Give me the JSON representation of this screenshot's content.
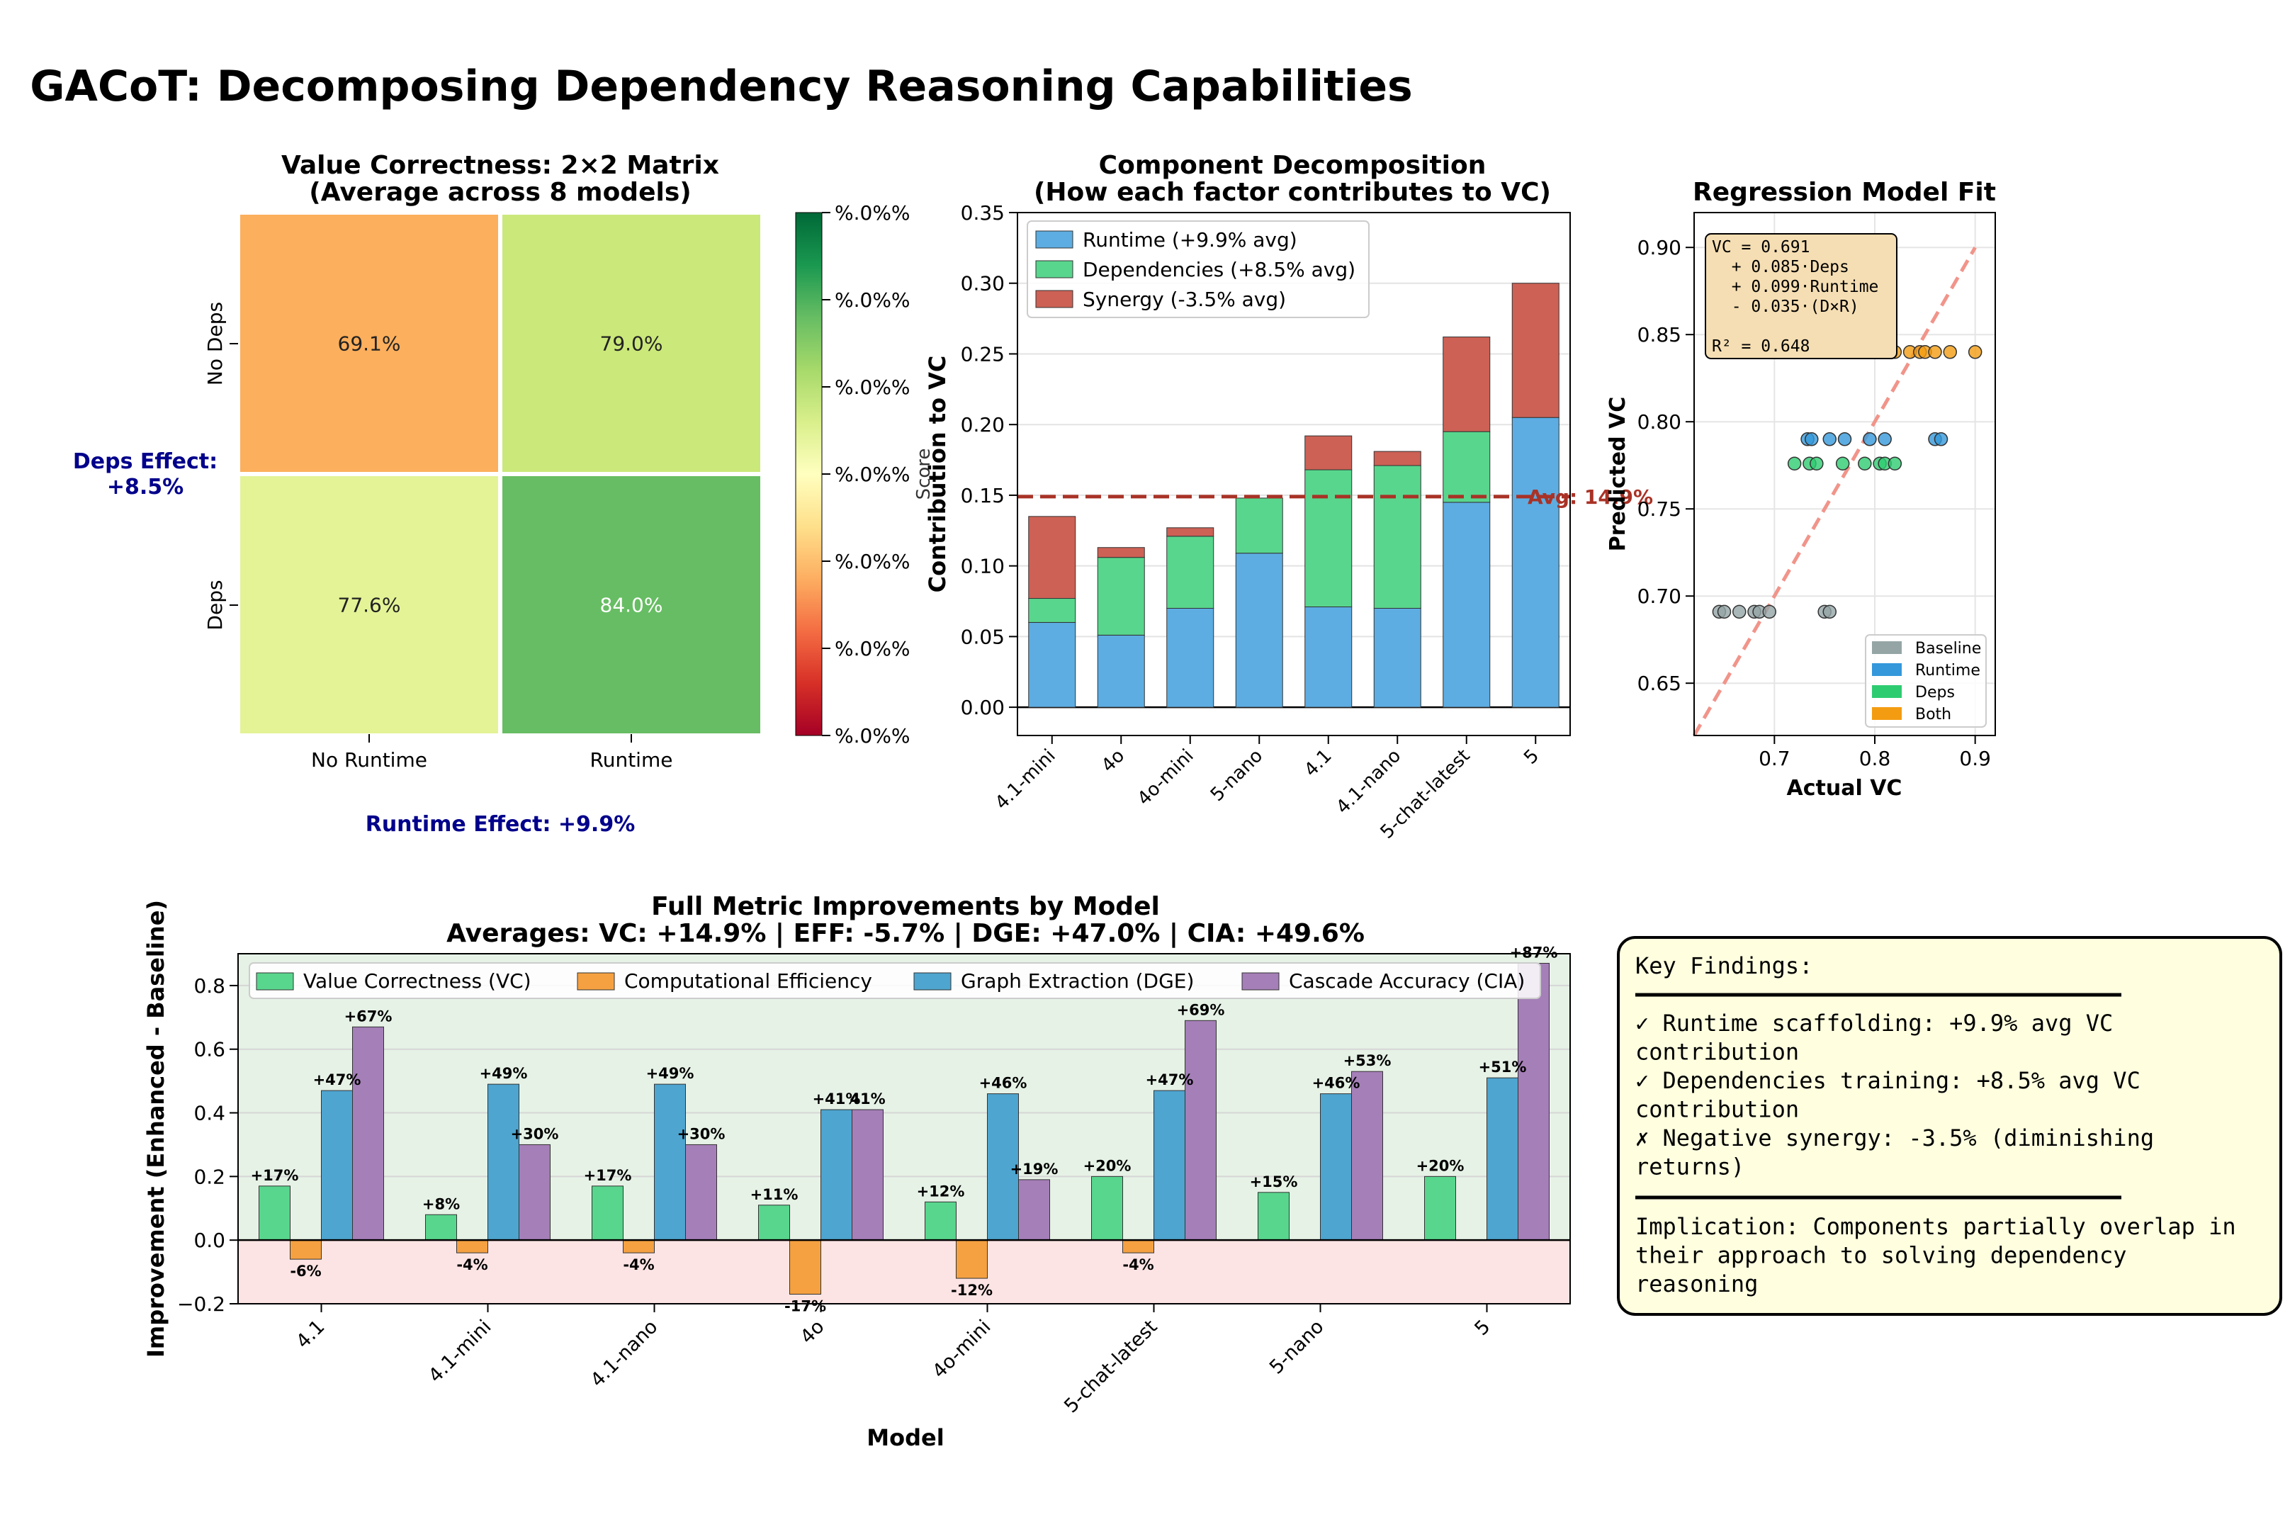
{
  "figure_title": "GACoT: Decomposing Dependency Reasoning Capabilities",
  "chart_data": [
    {
      "id": "heatmap",
      "type": "heatmap",
      "title": "Value Correctness: 2×2 Matrix",
      "subtitle": "(Average across 8 models)",
      "x_categories": [
        "No Runtime",
        "Runtime"
      ],
      "y_categories": [
        "No Deps",
        "Deps"
      ],
      "values": [
        [
          69.1,
          79.0
        ],
        [
          77.6,
          84.0
        ]
      ],
      "value_labels": [
        [
          "69.1%",
          "79.0%"
        ],
        [
          "77.6%",
          "84.0%"
        ]
      ],
      "cell_colors": [
        [
          "#fcaf5c",
          "#cbe87a"
        ],
        [
          "#e3f396",
          "#67bd63"
        ]
      ],
      "cell_text_colors": [
        [
          "#222222",
          "#222222"
        ],
        [
          "#222222",
          "#ffffff"
        ]
      ],
      "colorbar_tick_labels": [
        "%.0%%",
        "%.0%%",
        "%.0%%",
        "%.0%%",
        "%.0%%",
        "%.0%%",
        "%.0%%"
      ],
      "colorscale": "RdYlGn",
      "deps_effect_label": "Deps Effect:",
      "deps_effect_value": "+8.5%",
      "runtime_effect_label": "Runtime Effect: +9.9%"
    },
    {
      "id": "decomposition",
      "type": "bar",
      "stacked": true,
      "title": "Component Decomposition",
      "subtitle": "(How each factor contributes to VC)",
      "ylabel": "Contribution to VC",
      "ylabel_overlap": "Score",
      "categories": [
        "4.1-mini",
        "4o",
        "4o-mini",
        "5-nano",
        "4.1",
        "4.1-nano",
        "5-chat-latest",
        "5"
      ],
      "series": [
        {
          "name": "Runtime (+9.9% avg)",
          "color": "#5dade2",
          "values": [
            0.06,
            0.051,
            0.07,
            0.109,
            0.071,
            0.07,
            0.145,
            0.205
          ]
        },
        {
          "name": "Dependencies (+8.5% avg)",
          "color": "#58d68d",
          "values": [
            0.017,
            0.055,
            0.051,
            0.039,
            0.097,
            0.101,
            0.05,
            0.0
          ]
        },
        {
          "name": "Synergy (-3.5% avg)",
          "color": "#cd6155",
          "values": [
            0.058,
            0.007,
            0.006,
            0.0,
            0.024,
            0.01,
            0.067,
            0.095
          ]
        }
      ],
      "average_line": {
        "value": 0.149,
        "label": "Avg: 14.9%",
        "color": "#a93226"
      },
      "ylim": [
        -0.02,
        0.35
      ],
      "yticks": [
        "0.00",
        "0.05",
        "0.10",
        "0.15",
        "0.20",
        "0.25",
        "0.30",
        "0.35"
      ],
      "legend_position": "upper-left"
    },
    {
      "id": "regression",
      "type": "scatter",
      "title": "Regression Model Fit",
      "xlabel": "Actual VC",
      "ylabel": "Predicted VC",
      "xlim": [
        0.62,
        0.92
      ],
      "ylim": [
        0.62,
        0.92
      ],
      "xticks": [
        "0.7",
        "0.8",
        "0.9"
      ],
      "yticks": [
        "0.65",
        "0.70",
        "0.75",
        "0.80",
        "0.85",
        "0.90"
      ],
      "equation_lines": [
        "VC = 0.691",
        "  + 0.085·Deps",
        "  + 0.099·Runtime",
        "  - 0.035·(D×R)",
        "",
        "R² = 0.648"
      ],
      "series": [
        {
          "name": "Baseline",
          "color": "#95a5a6",
          "predicted": 0.691,
          "actual": [
            0.645,
            0.65,
            0.665,
            0.68,
            0.685,
            0.695,
            0.75,
            0.755
          ]
        },
        {
          "name": "Runtime",
          "color": "#3498db",
          "predicted": 0.79,
          "actual": [
            0.733,
            0.737,
            0.755,
            0.77,
            0.795,
            0.81,
            0.86,
            0.866
          ]
        },
        {
          "name": "Deps",
          "color": "#2ecc71",
          "predicted": 0.776,
          "actual": [
            0.72,
            0.735,
            0.742,
            0.768,
            0.79,
            0.805,
            0.81,
            0.82
          ]
        },
        {
          "name": "Both",
          "color": "#f39c12",
          "predicted": 0.84,
          "actual": [
            0.79,
            0.82,
            0.835,
            0.845,
            0.85,
            0.86,
            0.875,
            0.9
          ]
        }
      ],
      "identity_line_color": "#f1948a",
      "legend_position": "lower-right"
    },
    {
      "id": "improvements",
      "type": "bar",
      "title": "Full Metric Improvements by Model",
      "subtitle": "Averages: VC: +14.9% | EFF: -5.7% | DGE: +47.0% | CIA: +49.6%",
      "xlabel": "Model",
      "ylabel": "Improvement (Enhanced - Baseline)",
      "categories": [
        "4.1",
        "4.1-mini",
        "4.1-nano",
        "4o",
        "4o-mini",
        "5-chat-latest",
        "5-nano",
        "5"
      ],
      "series": [
        {
          "name": "Value Correctness (VC)",
          "color": "#58d68d",
          "values": [
            0.17,
            0.08,
            0.17,
            0.11,
            0.12,
            0.2,
            0.15,
            0.2
          ],
          "labels": [
            "+17%",
            "+8%",
            "+17%",
            "+11%",
            "+12%",
            "+20%",
            "+15%",
            "+20%"
          ]
        },
        {
          "name": "Computational Efficiency",
          "color": "#f5a142",
          "values": [
            -0.06,
            -0.04,
            -0.04,
            -0.17,
            -0.12,
            -0.04,
            0.0,
            0.0
          ],
          "labels": [
            "-6%",
            "-4%",
            "-4%",
            "-17%",
            "-12%",
            "-4%",
            "",
            ""
          ]
        },
        {
          "name": "Graph Extraction (DGE)",
          "color": "#4ea5cf",
          "values": [
            0.47,
            0.49,
            0.49,
            0.41,
            0.46,
            0.47,
            0.46,
            0.51
          ],
          "labels": [
            "+47%",
            "+49%",
            "+49%",
            "+41%",
            "+46%",
            "+47%",
            "+46%",
            "+51%"
          ]
        },
        {
          "name": "Cascade Accuracy (CIA)",
          "color": "#a57fb8",
          "values": [
            0.67,
            0.3,
            0.3,
            0.41,
            0.19,
            0.69,
            0.53,
            0.87
          ],
          "labels": [
            "+67%",
            "+30%",
            "+30%",
            "41%",
            "+19%",
            "+69%",
            "+53%",
            "+87%"
          ]
        }
      ],
      "ylim": [
        -0.2,
        0.9
      ],
      "yticks": [
        "−0.2",
        "0.0",
        "0.2",
        "0.4",
        "0.6",
        "0.8"
      ],
      "positive_region_color": "#e6f2e6",
      "negative_region_color": "#fde4e4",
      "legend_position": "top"
    }
  ],
  "key_findings": {
    "title": "Key Findings:",
    "lines": [
      "✓ Runtime scaffolding: +9.9% avg VC",
      "contribution",
      "✓ Dependencies training: +8.5% avg VC",
      "contribution",
      "✗ Negative synergy: -3.5% (diminishing",
      "returns)"
    ],
    "implication_lines": [
      "Implication: Components partially overlap in",
      "their approach to solving dependency",
      "reasoning"
    ]
  }
}
